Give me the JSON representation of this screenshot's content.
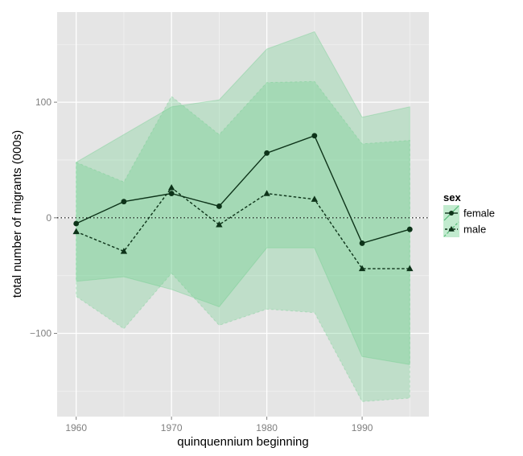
{
  "chart_data": {
    "type": "line",
    "title": "",
    "xlabel": "quinquennium beginning",
    "ylabel": "total number of migrants (000s)",
    "xlim": [
      1958,
      1997
    ],
    "ylim": [
      -172,
      178
    ],
    "x_ticks": [
      1960,
      1970,
      1980,
      1990
    ],
    "y_ticks": [
      -100,
      0,
      100
    ],
    "x_tick_labels": [
      "1960",
      "1970",
      "1980",
      "1990"
    ],
    "y_tick_labels": [
      "−100",
      "0",
      "100"
    ],
    "grid": true,
    "reference_line_y": 0,
    "legend": {
      "title": "sex",
      "placement": "right",
      "entries": [
        "female",
        "male"
      ]
    },
    "colors": {
      "panel": "#e5e5e5",
      "grid": "#ffffff",
      "ribbon": "#66cc88",
      "line": "#0d3319"
    },
    "x": [
      1960,
      1965,
      1970,
      1975,
      1980,
      1985,
      1990,
      1995
    ],
    "series": [
      {
        "name": "female",
        "linestyle": "solid",
        "marker": "circle",
        "values": [
          -5,
          14,
          21,
          10,
          56,
          71,
          -22,
          -10
        ],
        "lower": [
          -55,
          -51,
          -62,
          -77,
          -26,
          -26,
          -120,
          -127
        ],
        "upper": [
          48,
          72,
          96,
          102,
          146,
          161,
          87,
          96
        ]
      },
      {
        "name": "male",
        "linestyle": "dashed",
        "marker": "triangle",
        "values": [
          -12,
          -29,
          26,
          -6,
          21,
          16,
          -44,
          -44
        ],
        "lower": [
          -68,
          -96,
          -48,
          -93,
          -79,
          -82,
          -159,
          -156
        ],
        "upper": [
          48,
          31,
          105,
          72,
          117,
          118,
          64,
          67
        ]
      }
    ]
  }
}
